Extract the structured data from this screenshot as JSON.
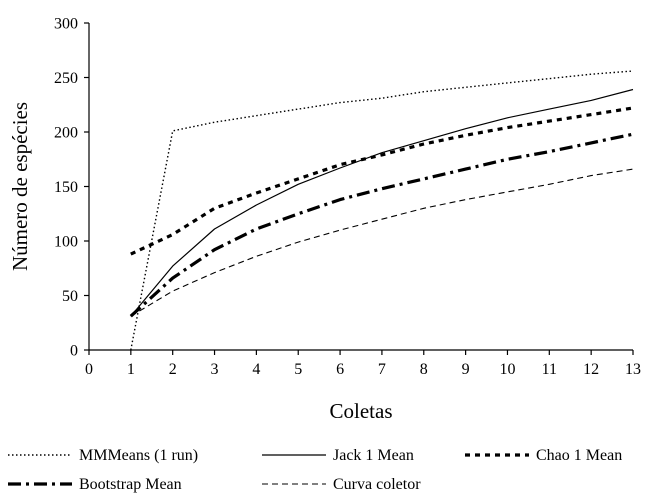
{
  "chart_data": {
    "type": "line",
    "xlabel": "Coletas",
    "ylabel": "Número de espécies",
    "xlim": [
      0,
      13
    ],
    "ylim": [
      0,
      300
    ],
    "xticks": [
      "0",
      "1",
      "2",
      "3",
      "4",
      "5",
      "6",
      "7",
      "8",
      "9",
      "10",
      "11",
      "12",
      "13"
    ],
    "yticks": [
      "0",
      "50",
      "100",
      "150",
      "200",
      "250",
      "300"
    ],
    "grid": false,
    "legend_position": "bottom",
    "x": [
      1,
      2,
      3,
      4,
      5,
      6,
      7,
      8,
      9,
      10,
      11,
      12,
      13
    ],
    "series": [
      {
        "name": "MMMeans (1 run)",
        "style": "dotted",
        "color": "#000000",
        "values": [
          0,
          201,
          209,
          215,
          221,
          227,
          231,
          237,
          241,
          245,
          249,
          253,
          256
        ]
      },
      {
        "name": "Jack 1 Mean",
        "style": "solid",
        "color": "#000000",
        "values": [
          31,
          77,
          111,
          133,
          152,
          167,
          181,
          192,
          203,
          213,
          221,
          229,
          239
        ]
      },
      {
        "name": "Chao 1 Mean",
        "style": "short-dash-bold",
        "color": "#000000",
        "values": [
          88,
          106,
          130,
          144,
          157,
          170,
          179,
          189,
          197,
          204,
          210,
          216,
          222
        ]
      },
      {
        "name": "Bootstrap Mean",
        "style": "dash-dot-bold",
        "color": "#000000",
        "values": [
          31,
          66,
          92,
          111,
          125,
          138,
          148,
          157,
          166,
          175,
          182,
          190,
          198
        ]
      },
      {
        "name": "Curva coletor",
        "style": "dashed",
        "color": "#000000",
        "values": [
          31,
          54,
          71,
          86,
          99,
          110,
          120,
          130,
          138,
          145,
          152,
          160,
          166
        ]
      }
    ]
  }
}
